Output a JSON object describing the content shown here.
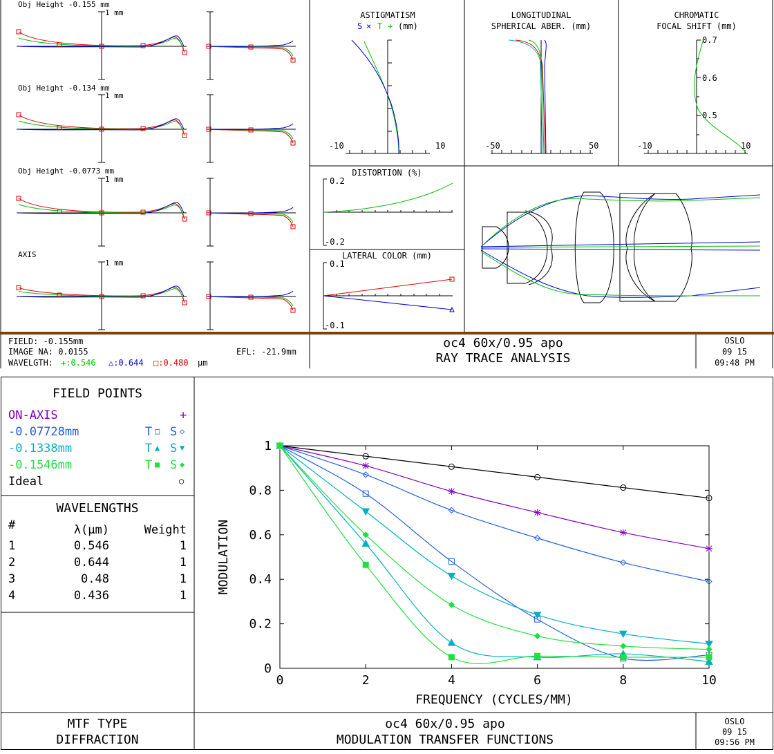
{
  "colors": {
    "green": "#00c000",
    "blue": "#0000e0",
    "red": "#e00000",
    "purple": "#8000c0",
    "teal": "#00b0c0",
    "brown": "#804000",
    "mtf_green": "#20e040",
    "mtf_blue": "#2060e0"
  },
  "ray_fans": {
    "scale_label": "1 mm",
    "fields": [
      {
        "label": "Obj Height -0.155 mm"
      },
      {
        "label": "Obj Height -0.134 mm"
      },
      {
        "label": "Obj Height -0.0773 mm"
      },
      {
        "label": "AXIS"
      }
    ]
  },
  "astigmatism": {
    "title1": "ASTIGMATISM",
    "title2_s": "S",
    "title2_t": "T",
    "title2_unit": "(mm)",
    "xmin": "-10",
    "xmax": "10"
  },
  "longitudinal": {
    "title1": "LONGITUDINAL",
    "title2": "SPHERICAL ABER. (mm)",
    "xmin": "-50",
    "xmax": "50"
  },
  "chromatic": {
    "title1": "CHROMATIC",
    "title2": "FOCAL SHIFT (mm)",
    "xmin": "-10",
    "xmax": "10",
    "y_ticks": [
      "0.7",
      "0.6",
      "0.5"
    ]
  },
  "distortion": {
    "title": "DISTORTION (%)",
    "ymax": "0.2",
    "ymin": "-0.2"
  },
  "lateral_color": {
    "title": "LATERAL COLOR (mm)",
    "ymax": "0.1",
    "ymin": "-0.1"
  },
  "info_top": {
    "field": "FIELD: -0.155mm",
    "image_na": "IMAGE NA: 0.0155",
    "wavelength_label": "WAVELGTH:",
    "wl1": "+:0.546",
    "wl2": "△:0.644",
    "wl3": "□:0.480",
    "wl_unit": "µm",
    "efl": "EFL: -21.9mm",
    "lens_name": "oc4 60x/0.95 apo",
    "analysis": "RAY TRACE ANALYSIS",
    "brand": "OSLO",
    "date": "09  15",
    "time": "09:48 PM"
  },
  "field_points": {
    "title": "FIELD POINTS",
    "rows": [
      {
        "label": "ON-AXIS",
        "marks": "+"
      },
      {
        "label": "-0.07728mm",
        "t": "T",
        "tm": "□",
        "s": "S",
        "sm": "◇"
      },
      {
        "label": "-0.1338mm",
        "t": "T",
        "tm": "▲",
        "s": "S",
        "sm": "▼"
      },
      {
        "label": "-0.1546mm",
        "t": "T",
        "tm": "■",
        "s": "S",
        "sm": "◆"
      },
      {
        "label": "Ideal",
        "marks": "○"
      }
    ]
  },
  "wavelengths": {
    "title": "WAVELENGTHS",
    "headers": [
      "#",
      "λ(µm)",
      "Weight"
    ],
    "rows": [
      [
        "1",
        "0.546",
        "1"
      ],
      [
        "2",
        "0.644",
        "1"
      ],
      [
        "3",
        "0.48",
        "1"
      ],
      [
        "4",
        "0.436",
        "1"
      ]
    ]
  },
  "mtf_footer": {
    "type1": "MTF TYPE",
    "type2": "DIFFRACTION",
    "lens_name": "oc4 60x/0.95 apo",
    "title": "MODULATION TRANSFER FUNCTIONS",
    "brand": "OSLO",
    "date": "09  15",
    "time": "09:56 PM"
  },
  "chart_data": {
    "type": "line",
    "title": "",
    "xlabel": "FREQUENCY (CYCLES/MM)",
    "ylabel": "MODULATION",
    "xlim": [
      0,
      10
    ],
    "ylim": [
      0,
      1
    ],
    "x_ticks": [
      "0",
      "2",
      "4",
      "6",
      "8",
      "10"
    ],
    "y_ticks": [
      "0",
      "0.2",
      "0.4",
      "0.6",
      "0.8",
      "1"
    ],
    "x": [
      0,
      2,
      4,
      6,
      8,
      10
    ],
    "series": [
      {
        "name": "Ideal",
        "color": "#000000",
        "marker": "circle",
        "values": [
          1,
          0.953,
          0.906,
          0.859,
          0.812,
          0.765
        ]
      },
      {
        "name": "ON-AXIS",
        "color": "#8000c0",
        "marker": "star",
        "values": [
          1,
          0.91,
          0.795,
          0.7,
          0.61,
          0.538
        ]
      },
      {
        "name": "-0.07728mm S",
        "color": "#2060e0",
        "marker": "diamond_open",
        "values": [
          1,
          0.87,
          0.71,
          0.585,
          0.475,
          0.39
        ]
      },
      {
        "name": "-0.07728mm T",
        "color": "#2060e0",
        "marker": "square_open",
        "values": [
          1,
          0.785,
          0.48,
          0.22,
          0.045,
          0.06
        ]
      },
      {
        "name": "-0.1338mm S",
        "color": "#00b0c0",
        "marker": "tri_down",
        "values": [
          1,
          0.705,
          0.415,
          0.24,
          0.155,
          0.11
        ]
      },
      {
        "name": "-0.1338mm T",
        "color": "#00b0c0",
        "marker": "tri_up",
        "values": [
          1,
          0.56,
          0.115,
          0.05,
          0.065,
          0.03
        ]
      },
      {
        "name": "-0.1546mm S",
        "color": "#20e040",
        "marker": "diamond_fill",
        "values": [
          1,
          0.6,
          0.285,
          0.145,
          0.1,
          0.085
        ]
      },
      {
        "name": "-0.1546mm T",
        "color": "#20e040",
        "marker": "square_fill",
        "values": [
          1,
          0.465,
          0.05,
          0.055,
          0.05,
          0.05
        ]
      }
    ]
  }
}
